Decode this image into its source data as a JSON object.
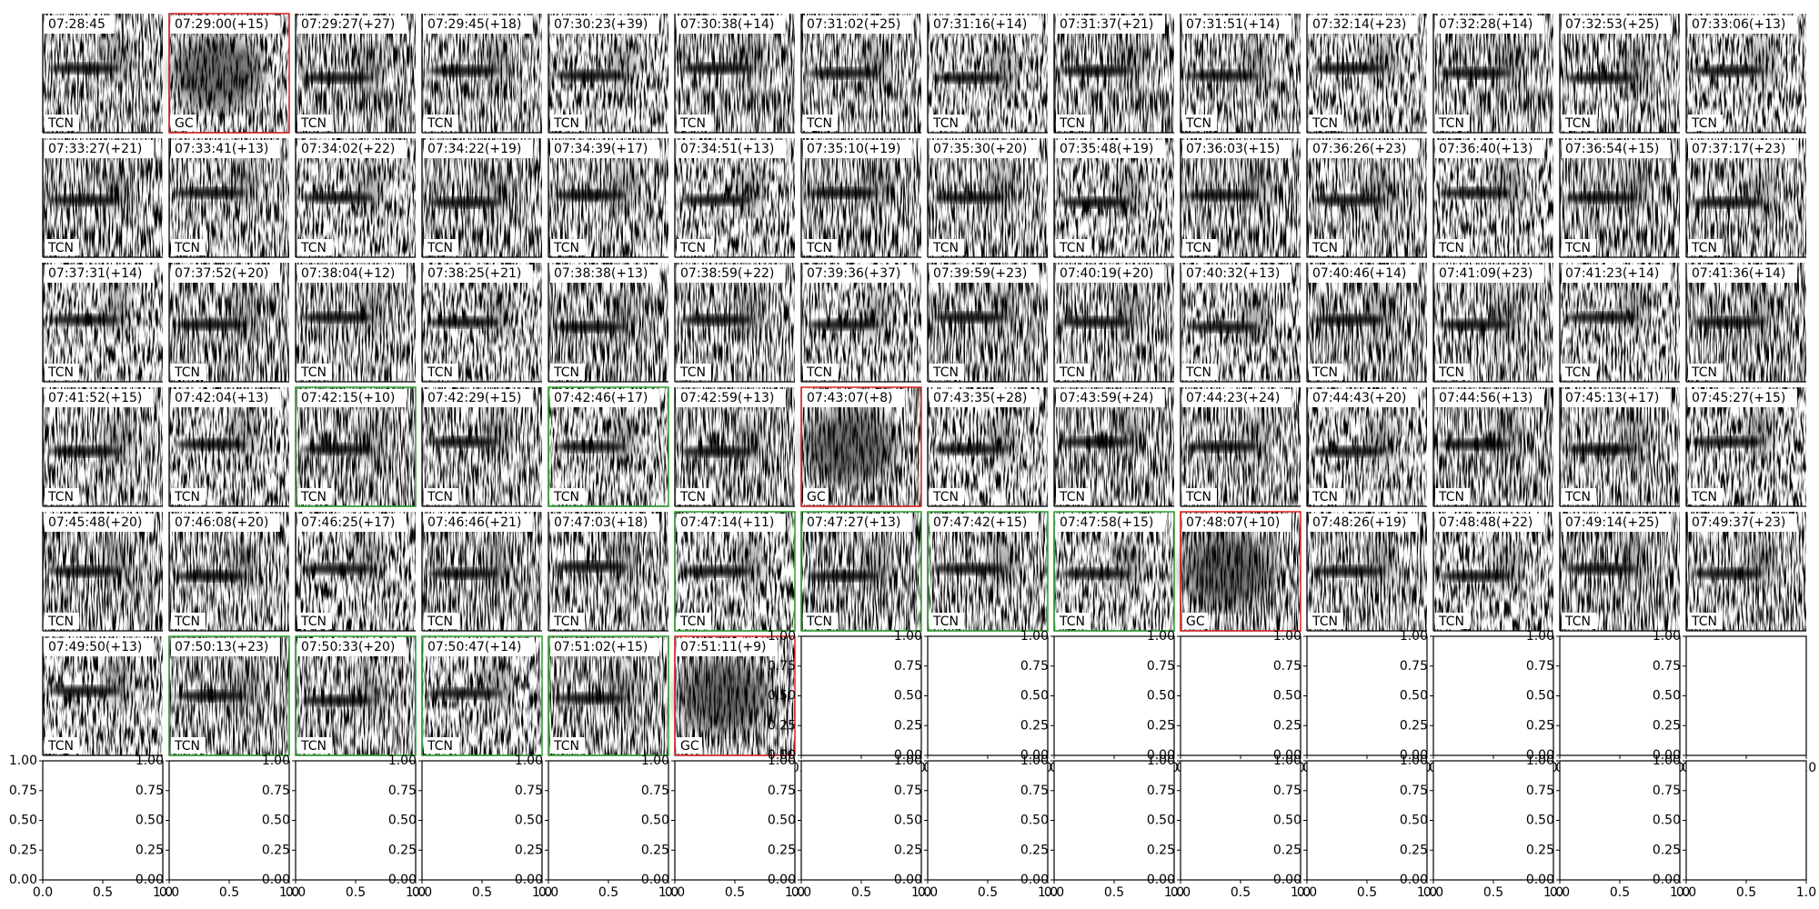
{
  "panels": [
    {
      "time": "07:28:45",
      "label": "TCN"
    },
    {
      "time": "07:29:00(+15)",
      "label": "GC",
      "border": "#e02020"
    },
    {
      "time": "07:29:27(+27)",
      "label": "TCN"
    },
    {
      "time": "07:29:45(+18)",
      "label": "TCN"
    },
    {
      "time": "07:30:23(+39)",
      "label": "TCN"
    },
    {
      "time": "07:30:38(+14)",
      "label": "TCN"
    },
    {
      "time": "07:31:02(+25)",
      "label": "TCN"
    },
    {
      "time": "07:31:16(+14)",
      "label": "TCN"
    },
    {
      "time": "07:31:37(+21)",
      "label": "TCN"
    },
    {
      "time": "07:31:51(+14)",
      "label": "TCN"
    },
    {
      "time": "07:32:14(+23)",
      "label": "TCN"
    },
    {
      "time": "07:32:28(+14)",
      "label": "TCN"
    },
    {
      "time": "07:32:53(+25)",
      "label": "TCN"
    },
    {
      "time": "07:33:06(+13)",
      "label": "TCN"
    },
    {
      "time": "07:33:27(+21)",
      "label": "TCN"
    },
    {
      "time": "07:33:41(+13)",
      "label": "TCN"
    },
    {
      "time": "07:34:02(+22)",
      "label": "TCN"
    },
    {
      "time": "07:34:22(+19)",
      "label": "TCN"
    },
    {
      "time": "07:34:39(+17)",
      "label": "TCN"
    },
    {
      "time": "07:34:51(+13)",
      "label": "TCN"
    },
    {
      "time": "07:35:10(+19)",
      "label": "TCN"
    },
    {
      "time": "07:35:30(+20)",
      "label": "TCN"
    },
    {
      "time": "07:35:48(+19)",
      "label": "TCN"
    },
    {
      "time": "07:36:03(+15)",
      "label": "TCN"
    },
    {
      "time": "07:36:26(+23)",
      "label": "TCN"
    },
    {
      "time": "07:36:40(+13)",
      "label": "TCN"
    },
    {
      "time": "07:36:54(+15)",
      "label": "TCN"
    },
    {
      "time": "07:37:17(+23)",
      "label": "TCN"
    },
    {
      "time": "07:37:31(+14)",
      "label": "TCN"
    },
    {
      "time": "07:37:52(+20)",
      "label": "TCN"
    },
    {
      "time": "07:38:04(+12)",
      "label": "TCN"
    },
    {
      "time": "07:38:25(+21)",
      "label": "TCN"
    },
    {
      "time": "07:38:38(+13)",
      "label": "TCN"
    },
    {
      "time": "07:38:59(+22)",
      "label": "TCN"
    },
    {
      "time": "07:39:36(+37)",
      "label": "TCN"
    },
    {
      "time": "07:39:59(+23)",
      "label": "TCN"
    },
    {
      "time": "07:40:19(+20)",
      "label": "TCN"
    },
    {
      "time": "07:40:32(+13)",
      "label": "TCN"
    },
    {
      "time": "07:40:46(+14)",
      "label": "TCN"
    },
    {
      "time": "07:41:09(+23)",
      "label": "TCN"
    },
    {
      "time": "07:41:23(+14)",
      "label": "TCN"
    },
    {
      "time": "07:41:36(+14)",
      "label": "TCN"
    },
    {
      "time": "07:41:52(+15)",
      "label": "TCN"
    },
    {
      "time": "07:42:04(+13)",
      "label": "TCN"
    },
    {
      "time": "07:42:15(+10)",
      "label": "TCN",
      "border": "#2ca02c"
    },
    {
      "time": "07:42:29(+15)",
      "label": "TCN"
    },
    {
      "time": "07:42:46(+17)",
      "label": "TCN",
      "border": "#2ca02c"
    },
    {
      "time": "07:42:59(+13)",
      "label": "TCN"
    },
    {
      "time": "07:43:07(+8)",
      "label": "GC",
      "border": "#e02020"
    },
    {
      "time": "07:43:35(+28)",
      "label": "TCN"
    },
    {
      "time": "07:43:59(+24)",
      "label": "TCN"
    },
    {
      "time": "07:44:23(+24)",
      "label": "TCN"
    },
    {
      "time": "07:44:43(+20)",
      "label": "TCN"
    },
    {
      "time": "07:44:56(+13)",
      "label": "TCN"
    },
    {
      "time": "07:45:13(+17)",
      "label": "TCN"
    },
    {
      "time": "07:45:27(+15)",
      "label": "TCN"
    },
    {
      "time": "07:45:48(+20)",
      "label": "TCN"
    },
    {
      "time": "07:46:08(+20)",
      "label": "TCN"
    },
    {
      "time": "07:46:25(+17)",
      "label": "TCN"
    },
    {
      "time": "07:46:46(+21)",
      "label": "TCN"
    },
    {
      "time": "07:47:03(+18)",
      "label": "TCN"
    },
    {
      "time": "07:47:14(+11)",
      "label": "TCN",
      "border": "#2ca02c"
    },
    {
      "time": "07:47:27(+13)",
      "label": "TCN",
      "border": "#2ca02c"
    },
    {
      "time": "07:47:42(+15)",
      "label": "TCN",
      "border": "#2ca02c"
    },
    {
      "time": "07:47:58(+15)",
      "label": "TCN",
      "border": "#2ca02c"
    },
    {
      "time": "07:48:07(+10)",
      "label": "GC",
      "border": "#e02020"
    },
    {
      "time": "07:48:26(+19)",
      "label": "TCN"
    },
    {
      "time": "07:48:48(+22)",
      "label": "TCN"
    },
    {
      "time": "07:49:14(+25)",
      "label": "TCN"
    },
    {
      "time": "07:49:37(+23)",
      "label": "TCN"
    },
    {
      "time": "07:49:50(+13)",
      "label": "TCN"
    },
    {
      "time": "07:50:13(+23)",
      "label": "TCN",
      "border": "#2ca02c"
    },
    {
      "time": "07:50:33(+20)",
      "label": "TCN",
      "border": "#2ca02c"
    },
    {
      "time": "07:50:47(+14)",
      "label": "TCN",
      "border": "#2ca02c"
    },
    {
      "time": "07:51:02(+15)",
      "label": "TCN",
      "border": "#2ca02c"
    },
    {
      "time": "07:51:11(+9)",
      "label": "GC",
      "border": "#e02020"
    }
  ],
  "empty_axes": {
    "yticks": [
      "0.00",
      "0.25",
      "0.50",
      "0.75",
      "1.00"
    ],
    "xticks": [
      "0.0",
      "0.5",
      "1.0"
    ]
  }
}
